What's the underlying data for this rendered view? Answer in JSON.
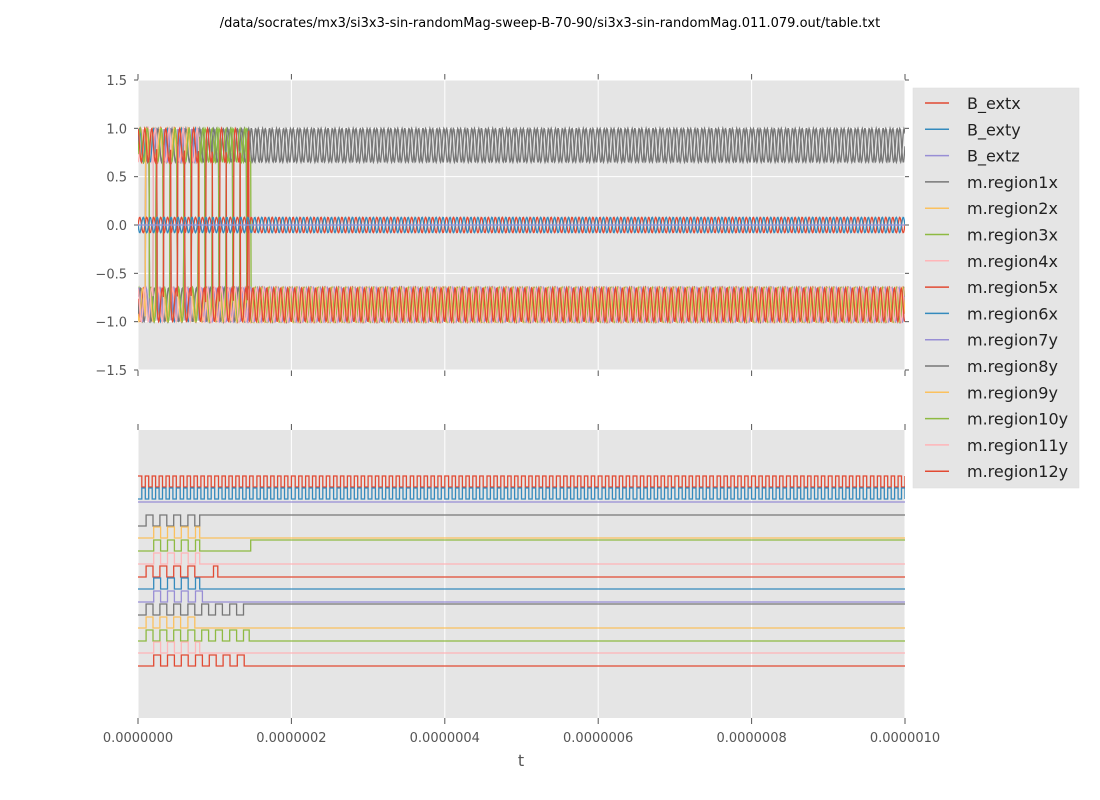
{
  "chart_data": [
    {
      "type": "line",
      "title": "/data/socrates/mx3/si3x3-sin-randomMag-sweep-B-70-90/si3x3-sin-randomMag.011.079.out/table.txt",
      "xlabel": "",
      "ylabel": "",
      "xlim": [
        0,
        1e-06
      ],
      "ylim": [
        -1.5,
        1.5
      ],
      "x_ticks": [
        0,
        2e-07,
        4e-07,
        6e-07,
        8e-07,
        1e-06
      ],
      "y_ticks": [
        -1.5,
        -1.0,
        -0.5,
        0.0,
        0.5,
        1.0,
        1.5
      ],
      "y_tick_labels": [
        "−1.5",
        "−1.0",
        "−0.5",
        "0.0",
        "0.5",
        "1.0",
        "1.5"
      ],
      "grid": true,
      "description": "Field components oscillate around 0 with amplitude ~0.08 (~110 cycles); magnetization components oscillate between ~0.65 and 1.0 (upper band) or ~-0.65 and -1.0 (lower band); several components switch sign repeatedly before t~1.5e-7 then settle.",
      "bext_amplitude": 0.08,
      "cycles_total": 110,
      "m_band_inner": 0.65,
      "m_band_outer": 1.0,
      "switching_end_t": 1.47e-07
    },
    {
      "type": "line",
      "subtype": "digital-traces",
      "xlabel": "t",
      "xlim": [
        0,
        1e-06
      ],
      "x_ticks": [
        0,
        2e-07,
        4e-07,
        6e-07,
        8e-07,
        1e-06
      ],
      "x_tick_labels": [
        "0.0000000",
        "0.0000002",
        "0.0000004",
        "0.0000006",
        "0.0000008",
        "0.0000010"
      ],
      "grid": true,
      "traces": [
        {
          "name": "B_extx",
          "oscillating": true,
          "final_state": "toggle"
        },
        {
          "name": "B_exty",
          "oscillating": true,
          "final_state": "toggle"
        },
        {
          "name": "B_extz",
          "switch_end": 0,
          "final_state": "high"
        },
        {
          "name": "m.region1x",
          "switch_start": 1e-08,
          "switch_end": 8e-08,
          "final_state": "high"
        },
        {
          "name": "m.region2x",
          "switch_start": 2e-08,
          "switch_end": 8e-08,
          "final_state": "low"
        },
        {
          "name": "m.region3x",
          "switch_start": 2e-08,
          "switch_end": 8e-08,
          "final_state": "low",
          "late_flip_t": 1.47e-07
        },
        {
          "name": "m.region4x",
          "switch_start": 2e-08,
          "switch_end": 8e-08,
          "final_state": "low"
        },
        {
          "name": "m.region5x",
          "switch_start": 1e-08,
          "switch_end": 8e-08,
          "final_state": "low",
          "late_pulse_t": 1.01e-07
        },
        {
          "name": "m.region6x",
          "switch_start": 2e-08,
          "switch_end": 8e-08,
          "final_state": "low"
        },
        {
          "name": "m.region7y",
          "switch_start": 2e-08,
          "switch_end": 8.5e-08,
          "final_state": "low"
        },
        {
          "name": "m.region8y",
          "switch_start": 1e-08,
          "switch_end": 1.43e-07,
          "final_state": "high"
        },
        {
          "name": "m.region9y",
          "switch_start": 1e-08,
          "switch_end": 8e-08,
          "final_state": "low"
        },
        {
          "name": "m.region10y",
          "switch_start": 1e-08,
          "switch_end": 1.45e-07,
          "final_state": "low"
        },
        {
          "name": "m.region11y",
          "switch_start": 2e-08,
          "switch_end": 8e-08,
          "final_state": "low"
        },
        {
          "name": "m.region12y",
          "switch_start": 2e-08,
          "switch_end": 1.45e-07,
          "final_state": "low"
        }
      ]
    }
  ],
  "legend": {
    "placement": "right",
    "entries": [
      {
        "label": "B_extx",
        "color": "#E24A33"
      },
      {
        "label": "B_exty",
        "color": "#348ABD"
      },
      {
        "label": "B_extz",
        "color": "#988ED5"
      },
      {
        "label": "m.region1x",
        "color": "#777777"
      },
      {
        "label": "m.region2x",
        "color": "#FBC15E"
      },
      {
        "label": "m.region3x",
        "color": "#8EBA42"
      },
      {
        "label": "m.region4x",
        "color": "#FFB5B8"
      },
      {
        "label": "m.region5x",
        "color": "#E24A33"
      },
      {
        "label": "m.region6x",
        "color": "#348ABD"
      },
      {
        "label": "m.region7y",
        "color": "#988ED5"
      },
      {
        "label": "m.region8y",
        "color": "#777777"
      },
      {
        "label": "m.region9y",
        "color": "#FBC15E"
      },
      {
        "label": "m.region10y",
        "color": "#8EBA42"
      },
      {
        "label": "m.region11y",
        "color": "#FFB5B8"
      },
      {
        "label": "m.region12y",
        "color": "#E24A33"
      }
    ]
  },
  "colors": {
    "axes_bg": "#E5E5E5",
    "grid": "#FFFFFF",
    "tick": "#555555"
  }
}
